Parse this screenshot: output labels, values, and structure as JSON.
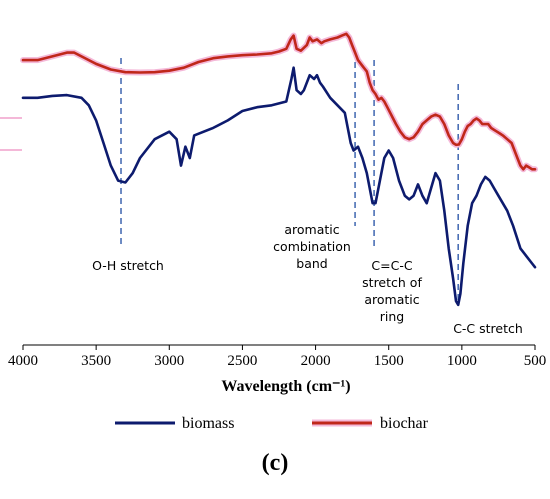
{
  "chart_data": {
    "type": "line",
    "title": "",
    "xlabel": "Wavelength (cm⁻¹)",
    "ylabel": "",
    "xlim": [
      4000,
      500
    ],
    "x_ticks": [
      "4000",
      "3500",
      "3000",
      "2500",
      "2000",
      "1500",
      "1000",
      "500"
    ],
    "y_axis_visible": false,
    "grid": false,
    "legend_position": "bottom",
    "series": [
      {
        "name": "biomass",
        "color": "#0d1b6e",
        "points": [
          [
            4000,
            0.88
          ],
          [
            3900,
            0.88
          ],
          [
            3800,
            0.885
          ],
          [
            3700,
            0.887
          ],
          [
            3600,
            0.88
          ],
          [
            3550,
            0.86
          ],
          [
            3500,
            0.82
          ],
          [
            3450,
            0.76
          ],
          [
            3400,
            0.7
          ],
          [
            3350,
            0.66
          ],
          [
            3300,
            0.655
          ],
          [
            3250,
            0.68
          ],
          [
            3200,
            0.72
          ],
          [
            3100,
            0.77
          ],
          [
            3000,
            0.79
          ],
          [
            2950,
            0.77
          ],
          [
            2920,
            0.7
          ],
          [
            2890,
            0.75
          ],
          [
            2860,
            0.72
          ],
          [
            2830,
            0.78
          ],
          [
            2700,
            0.8
          ],
          [
            2600,
            0.82
          ],
          [
            2500,
            0.845
          ],
          [
            2400,
            0.855
          ],
          [
            2300,
            0.86
          ],
          [
            2200,
            0.87
          ],
          [
            2165,
            0.93
          ],
          [
            2150,
            0.96
          ],
          [
            2130,
            0.9
          ],
          [
            2100,
            0.89
          ],
          [
            2080,
            0.9
          ],
          [
            2040,
            0.94
          ],
          [
            2010,
            0.93
          ],
          [
            1990,
            0.94
          ],
          [
            1970,
            0.92
          ],
          [
            1950,
            0.91
          ],
          [
            1900,
            0.88
          ],
          [
            1850,
            0.86
          ],
          [
            1800,
            0.84
          ],
          [
            1760,
            0.76
          ],
          [
            1740,
            0.74
          ],
          [
            1710,
            0.75
          ],
          [
            1680,
            0.72
          ],
          [
            1650,
            0.68
          ],
          [
            1610,
            0.6
          ],
          [
            1590,
            0.6
          ],
          [
            1560,
            0.66
          ],
          [
            1530,
            0.72
          ],
          [
            1500,
            0.74
          ],
          [
            1470,
            0.72
          ],
          [
            1430,
            0.66
          ],
          [
            1390,
            0.62
          ],
          [
            1360,
            0.61
          ],
          [
            1330,
            0.62
          ],
          [
            1300,
            0.65
          ],
          [
            1270,
            0.62
          ],
          [
            1240,
            0.6
          ],
          [
            1210,
            0.64
          ],
          [
            1180,
            0.68
          ],
          [
            1150,
            0.66
          ],
          [
            1120,
            0.58
          ],
          [
            1090,
            0.48
          ],
          [
            1060,
            0.4
          ],
          [
            1040,
            0.34
          ],
          [
            1025,
            0.33
          ],
          [
            1010,
            0.36
          ],
          [
            990,
            0.44
          ],
          [
            960,
            0.54
          ],
          [
            930,
            0.6
          ],
          [
            900,
            0.62
          ],
          [
            870,
            0.65
          ],
          [
            840,
            0.67
          ],
          [
            810,
            0.66
          ],
          [
            780,
            0.64
          ],
          [
            750,
            0.62
          ],
          [
            720,
            0.6
          ],
          [
            690,
            0.58
          ],
          [
            650,
            0.54
          ],
          [
            600,
            0.48
          ],
          [
            560,
            0.46
          ],
          [
            520,
            0.44
          ],
          [
            500,
            0.43
          ]
        ]
      },
      {
        "name": "biochar",
        "color": "#c0271a",
        "points": [
          [
            4000,
            0.98
          ],
          [
            3900,
            0.98
          ],
          [
            3800,
            0.99
          ],
          [
            3700,
            1.0
          ],
          [
            3650,
            1.0
          ],
          [
            3600,
            0.99
          ],
          [
            3550,
            0.98
          ],
          [
            3500,
            0.97
          ],
          [
            3400,
            0.955
          ],
          [
            3300,
            0.948
          ],
          [
            3200,
            0.947
          ],
          [
            3100,
            0.948
          ],
          [
            3000,
            0.952
          ],
          [
            2900,
            0.96
          ],
          [
            2800,
            0.975
          ],
          [
            2700,
            0.985
          ],
          [
            2600,
            0.99
          ],
          [
            2500,
            0.993
          ],
          [
            2400,
            0.995
          ],
          [
            2300,
            0.998
          ],
          [
            2250,
            1.003
          ],
          [
            2200,
            1.01
          ],
          [
            2170,
            1.035
          ],
          [
            2150,
            1.045
          ],
          [
            2130,
            1.01
          ],
          [
            2100,
            1.005
          ],
          [
            2060,
            1.02
          ],
          [
            2040,
            1.04
          ],
          [
            2020,
            1.03
          ],
          [
            1990,
            1.035
          ],
          [
            1960,
            1.025
          ],
          [
            1940,
            1.03
          ],
          [
            1900,
            1.035
          ],
          [
            1850,
            1.04
          ],
          [
            1820,
            1.045
          ],
          [
            1790,
            1.05
          ],
          [
            1770,
            1.04
          ],
          [
            1750,
            1.02
          ],
          [
            1730,
            1.0
          ],
          [
            1710,
            0.98
          ],
          [
            1690,
            0.97
          ],
          [
            1670,
            0.96
          ],
          [
            1650,
            0.95
          ],
          [
            1630,
            0.92
          ],
          [
            1610,
            0.9
          ],
          [
            1590,
            0.89
          ],
          [
            1570,
            0.875
          ],
          [
            1550,
            0.88
          ],
          [
            1530,
            0.87
          ],
          [
            1510,
            0.855
          ],
          [
            1490,
            0.84
          ],
          [
            1470,
            0.825
          ],
          [
            1450,
            0.81
          ],
          [
            1420,
            0.79
          ],
          [
            1390,
            0.775
          ],
          [
            1360,
            0.77
          ],
          [
            1330,
            0.775
          ],
          [
            1300,
            0.79
          ],
          [
            1270,
            0.81
          ],
          [
            1240,
            0.82
          ],
          [
            1210,
            0.83
          ],
          [
            1180,
            0.835
          ],
          [
            1150,
            0.83
          ],
          [
            1120,
            0.81
          ],
          [
            1090,
            0.78
          ],
          [
            1060,
            0.76
          ],
          [
            1040,
            0.755
          ],
          [
            1020,
            0.756
          ],
          [
            1000,
            0.77
          ],
          [
            980,
            0.79
          ],
          [
            960,
            0.805
          ],
          [
            940,
            0.81
          ],
          [
            920,
            0.82
          ],
          [
            900,
            0.825
          ],
          [
            880,
            0.82
          ],
          [
            860,
            0.81
          ],
          [
            840,
            0.81
          ],
          [
            820,
            0.81
          ],
          [
            800,
            0.8
          ],
          [
            780,
            0.795
          ],
          [
            760,
            0.79
          ],
          [
            740,
            0.785
          ],
          [
            720,
            0.78
          ],
          [
            690,
            0.77
          ],
          [
            660,
            0.76
          ],
          [
            640,
            0.74
          ],
          [
            620,
            0.72
          ],
          [
            600,
            0.7
          ],
          [
            580,
            0.69
          ],
          [
            560,
            0.7
          ],
          [
            540,
            0.695
          ],
          [
            520,
            0.69
          ],
          [
            500,
            0.69
          ]
        ]
      }
    ],
    "reference_lines": [
      {
        "x": 3330,
        "label": [
          "O-H stretch"
        ]
      },
      {
        "x": 1730,
        "label": [
          "aromatic",
          "combination",
          "band"
        ]
      },
      {
        "x": 1600,
        "label": [
          "C=C-C",
          "stretch of",
          "aromatic",
          "ring"
        ]
      },
      {
        "x": 1025,
        "label": [
          "C-C stretch"
        ]
      }
    ],
    "reference_line_color": "#4a6fb5",
    "panel_label": "(c)"
  }
}
